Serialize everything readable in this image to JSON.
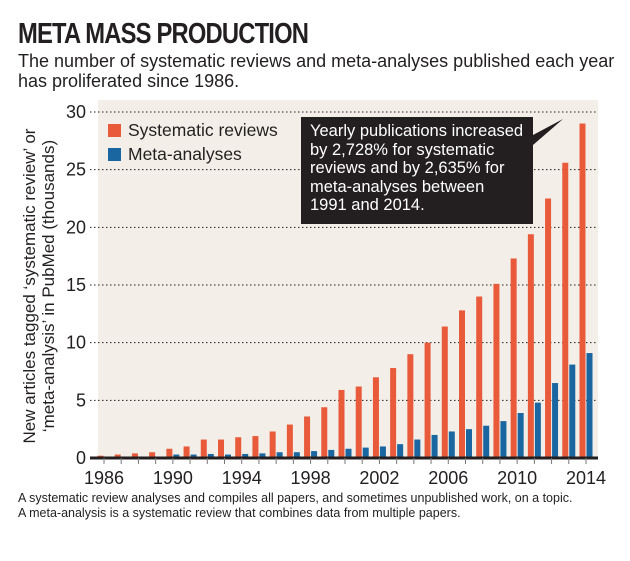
{
  "header": {
    "title": "META MASS PRODUCTION",
    "subtitle": "The number of systematic reviews and meta-analyses published each year has proliferated since 1986."
  },
  "callout": {
    "text": "Yearly publications increased by 2,728% for systematic reviews and by 2,635% for meta-analyses between 1991 and 2014."
  },
  "footnote": {
    "line1": "A systematic review analyses and compiles all papers, and sometimes unpublished work, on a topic.",
    "line2": "A meta-analysis is a systematic review that combines data from multiple papers."
  },
  "colors": {
    "systematic": "#e85a3a",
    "meta": "#1a66a0",
    "plot_bg": "#f3efe8",
    "axis": "#231f20"
  },
  "chart_data": {
    "type": "bar",
    "title": "META MASS PRODUCTION",
    "xlabel": "",
    "ylabel": "New articles tagged ‘systematic review’ or ‘meta-analysis’ in PubMed (thousands)",
    "ylim": [
      0,
      30
    ],
    "yticks": [
      0,
      5,
      10,
      15,
      20,
      25,
      30
    ],
    "xticklabels": [
      "1986",
      "1990",
      "1994",
      "1998",
      "2002",
      "2006",
      "2010",
      "2014"
    ],
    "grid": true,
    "legend_position": "top-left",
    "categories": [
      "1986",
      "1987",
      "1988",
      "1989",
      "1990",
      "1991",
      "1992",
      "1993",
      "1994",
      "1995",
      "1996",
      "1997",
      "1998",
      "1999",
      "2000",
      "2001",
      "2002",
      "2003",
      "2004",
      "2005",
      "2006",
      "2007",
      "2008",
      "2009",
      "2010",
      "2011",
      "2012",
      "2013",
      "2014"
    ],
    "series": [
      {
        "name": "Systematic reviews",
        "values": [
          0.2,
          0.3,
          0.4,
          0.5,
          0.8,
          1.0,
          1.6,
          1.6,
          1.8,
          1.9,
          2.3,
          2.9,
          3.6,
          4.4,
          5.9,
          6.2,
          7.0,
          7.8,
          9.0,
          10.0,
          11.4,
          12.8,
          14.0,
          15.1,
          17.3,
          19.4,
          22.5,
          25.6,
          29.0
        ]
      },
      {
        "name": "Meta-analyses",
        "values": [
          0.0,
          0.0,
          0.0,
          0.0,
          0.3,
          0.3,
          0.35,
          0.3,
          0.35,
          0.4,
          0.5,
          0.5,
          0.6,
          0.7,
          0.8,
          0.9,
          1.0,
          1.2,
          1.6,
          2.0,
          2.3,
          2.5,
          2.8,
          3.2,
          3.9,
          4.8,
          6.5,
          8.1,
          9.1
        ]
      }
    ]
  }
}
